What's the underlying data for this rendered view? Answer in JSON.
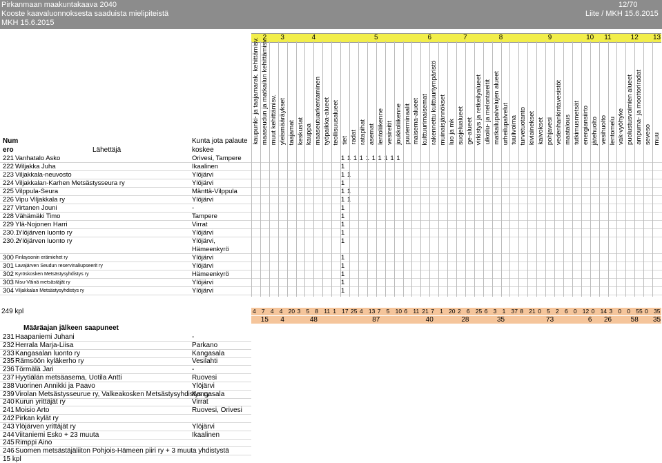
{
  "header": {
    "line1": "Pirkanmaan maakuntakaava 2040",
    "line2": "Kooste kaavaluonnoksesta saaduista mielipiteistä",
    "line3": "MKH 15.6.2015",
    "page": "12/70",
    "appendix": "Liite / MKH 15.6.2015"
  },
  "col_groups": [
    "2",
    "3",
    "4",
    "5",
    "6",
    "7",
    "8",
    "9",
    "10",
    "11",
    "12",
    "13"
  ],
  "categories": [
    "kaupunki- ja taajamarak. kehittämisv.",
    "maaseudun ja matkailun kehittämisv.",
    "muut kehittämisv.",
    "yleismääräykset",
    "taajamat",
    "keskustat",
    "kauppa",
    "maaseutuarkentaminen",
    "työpaikka-alueet",
    "teollisuusalueet",
    "tiet",
    "radat",
    "ratapihat",
    "asemat",
    "lentoliikenne",
    "vesireitit",
    "joukkoliikenne",
    "puuterminaalit",
    "maisema-alueet",
    "kulttuurimaisemat",
    "rakennettu kulttuuriympäristö",
    "muinaisjännökset",
    "luo ja mk",
    "suojelualueet",
    "ge-alueet",
    "virkistys ja retkeilyalueet",
    "ulkoilu- ja melontareitit",
    "matkailupalvelujen alueet",
    "urheilupalvelut",
    "tuulivoima",
    "turvetuotanto",
    "kiviainekset",
    "kaivokset",
    "pohjavesi",
    "vedenhankintavesistöt",
    "maatalous",
    "tutkimusmetsät",
    "energiansiirto",
    "jätehuolto",
    "vesihuolto",
    "lentomelu",
    "vak-vyöhyke",
    "puolustusvoimien alueet",
    "ampuma- ja moottoriradat",
    "seveso",
    "muu"
  ],
  "labels": {
    "num": "Num",
    "ero": "ero",
    "sender": "Lähettäjä",
    "municipality1": "Kunta jota palaute",
    "municipality2": "koskee"
  },
  "rows": [
    {
      "n": "221",
      "s": "Vanhatalo Asko",
      "m": "Orivesi, Tampere",
      "marks": "1    1   1        1  1       1               1    1        1                1"
    },
    {
      "n": "222",
      "s": "Wiljakka Juha",
      "m": "Ikaalinen",
      "marks": "1"
    },
    {
      "n": "223",
      "s": "Viljakkala-neuvosto",
      "m": "Ylöjärvi",
      "marks": "1             1"
    },
    {
      "n": "224",
      "s": "Viljakkalan-Karhen Metsästysseura ry",
      "m": "Ylöjärvi",
      "marks": "1"
    },
    {
      "n": "225",
      "s": "Vilppula-Seura",
      "m": "Mänttä-Vilppula",
      "marks": "1  1"
    },
    {
      "n": "226",
      "s": "Vipu Viljakkala ry",
      "m": "Ylöjärvi",
      "marks": "1                                   1"
    },
    {
      "n": "227",
      "s": "Virtanen Jouni",
      "m": "-",
      "marks": "1"
    },
    {
      "n": "228",
      "s": "Vähämäki Timo",
      "m": "Tampere",
      "marks": "1"
    },
    {
      "n": "229",
      "s": "Ylä-Nojonen Harri",
      "m": "Virrat",
      "marks": "1"
    },
    {
      "n": "230.1",
      "s": "Ylöjärven luonto ry",
      "m": "Ylöjärvi",
      "marks": "1"
    },
    {
      "n": "230.2",
      "s": "Ylöjärven luonto ry",
      "m": "Ylöjärvi,",
      "m2": "Hämeenkyrö",
      "marks": "1"
    },
    {
      "n": "300",
      "s": "Finlaysonin erämiehet ry",
      "m": "Ylöjärvi",
      "marks": "1"
    },
    {
      "n": "301",
      "s": "Lavajärven Seudun reservinaliupseerit ry",
      "m": "Ylöjärvi",
      "marks": "1"
    },
    {
      "n": "302",
      "s": "Kyröskosken Metsästysyhdistys ry",
      "m": "Hämeenkyrö",
      "marks": "1"
    },
    {
      "n": "303",
      "s": "Nisu-Väinä metsästäjät ry",
      "m": "Ylöjärvi",
      "marks": "1"
    },
    {
      "n": "304",
      "s": "Viljakkalan Metsästysyhdistys ry",
      "m": "Ylöjärvi",
      "marks": "1"
    }
  ],
  "total_label": "249 kpl",
  "totals": [
    "4",
    "7",
    "4",
    "4",
    "20",
    "3",
    "5",
    "8",
    "11",
    "1",
    "17",
    "25",
    "4",
    "13",
    "7",
    "5",
    "10",
    "6",
    "11",
    "21",
    "7",
    "1",
    "20",
    "2",
    "6",
    "25",
    "6",
    "3",
    "1",
    "37",
    "8",
    "21",
    "0",
    "5",
    "2",
    "6",
    "0",
    "12",
    "0",
    "14",
    "3",
    "0",
    "0",
    "55",
    "0",
    "35"
  ],
  "group_totals": [
    "15",
    "4",
    "48",
    "87",
    "40",
    "28",
    "35",
    "73",
    "6",
    "26",
    "58",
    "35"
  ],
  "late_title": "Määräajan jälkeen saapuneet",
  "late_rows": [
    {
      "n": "231",
      "s": "Haapaniemi Juhani",
      "m": "-"
    },
    {
      "n": "232",
      "s": "Herrala Marja-Liisa",
      "m": "Parkano"
    },
    {
      "n": "233",
      "s": "Kangasalan luonto ry",
      "m": "Kangasala"
    },
    {
      "n": "235",
      "s": "Rämsöön kyläkerho ry",
      "m": "Vesilahti"
    },
    {
      "n": "236",
      "s": "Törmälä Jari",
      "m": "-"
    },
    {
      "n": "237",
      "s": "Hyytiälän metsäasema, Uotila Antti",
      "m": "Ruovesi"
    },
    {
      "n": "238",
      "s": "Vuorinen Annikki ja Paavo",
      "m": "Ylöjärvi"
    },
    {
      "n": "239",
      "s": "Virolan Metsästysseurue ry, Valkeakosken Metsästysyhdistys ry",
      "m": "Kangasala"
    },
    {
      "n": "240",
      "s": "Kurun yrittäjät ry",
      "m": "Virrat"
    },
    {
      "n": "241",
      "s": "Moisio Arto",
      "m": "Ruovesi, Orivesi"
    },
    {
      "n": "242",
      "s": "Pirkan kylät ry",
      "m": ""
    },
    {
      "n": "243",
      "s": "Ylöjärven yrittäjät ry",
      "m": "Ylöjärvi"
    },
    {
      "n": "244",
      "s": "Viitaniemi Esko + 23 muuta",
      "m": "Ikaalinen"
    },
    {
      "n": "245",
      "s": "Rimppi Aino",
      "m": ""
    },
    {
      "n": "246",
      "s": "Suomen metsästäjäliiton Pohjois-Hämeen piiri ry + 3 muuta yhdistystä",
      "m": ""
    }
  ],
  "late_total": "15 kpl"
}
